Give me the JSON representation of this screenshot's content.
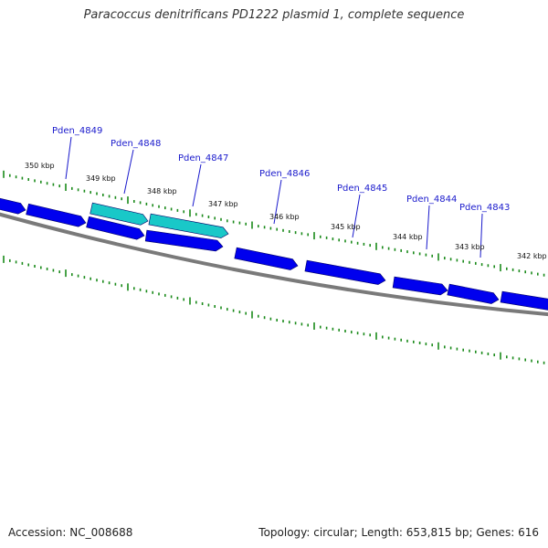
{
  "title": "Paracoccus denitrificans PD1222 plasmid 1, complete sequence",
  "footer": {
    "accession": "Accession: NC_008688",
    "summary": "Topology: circular; Length: 653,815 bp; Genes: 616"
  },
  "colors": {
    "gene": "#0000ee",
    "gene_highlight": "#19c8c8",
    "backbone": "#7a7a7a",
    "ticks": "#1a8a1a",
    "label": "#1a1acc"
  },
  "kbp_labels": [
    "350 kbp",
    "349 kbp",
    "348 kbp",
    "347 kbp",
    "346 kbp",
    "345 kbp",
    "344 kbp",
    "343 kbp",
    "342 kbp"
  ],
  "gene_labels": [
    "Pden_4849",
    "Pden_4848",
    "Pden_4847",
    "Pden_4846",
    "Pden_4845",
    "Pden_4844",
    "Pden_4843"
  ]
}
